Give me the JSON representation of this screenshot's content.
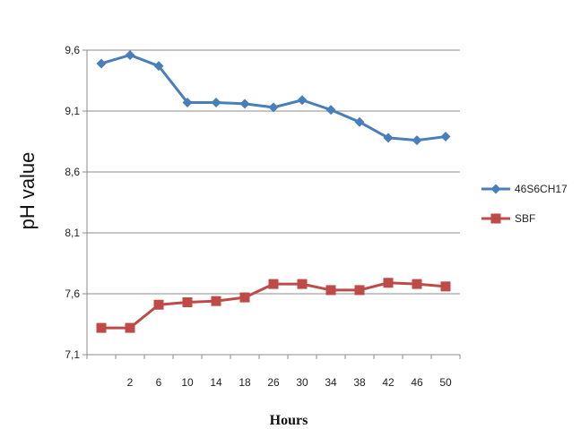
{
  "chart_data": {
    "type": "line",
    "title": "",
    "xlabel": "Hours",
    "ylabel": "pH  value",
    "categories": [
      "",
      "2",
      "6",
      "10",
      "14",
      "18",
      "26",
      "30",
      "34",
      "38",
      "42",
      "46",
      "50"
    ],
    "yticks": [
      "9,6",
      "9,1",
      "8,6",
      "8,1",
      "7,6",
      "7,1"
    ],
    "ylim": [
      7.1,
      9.6
    ],
    "grid": "horizontal",
    "legend_position": "right",
    "series": [
      {
        "name": "46S6CH17",
        "color": "#4a7ebb",
        "marker": "diamond",
        "values": [
          9.49,
          9.56,
          9.47,
          9.17,
          9.17,
          9.16,
          9.13,
          9.19,
          9.11,
          9.01,
          8.88,
          8.86,
          8.89
        ]
      },
      {
        "name": "SBF",
        "color": "#be4b48",
        "marker": "square",
        "values": [
          7.32,
          7.32,
          7.51,
          7.53,
          7.54,
          7.57,
          7.68,
          7.68,
          7.63,
          7.63,
          7.69,
          7.68,
          7.66
        ]
      }
    ]
  }
}
